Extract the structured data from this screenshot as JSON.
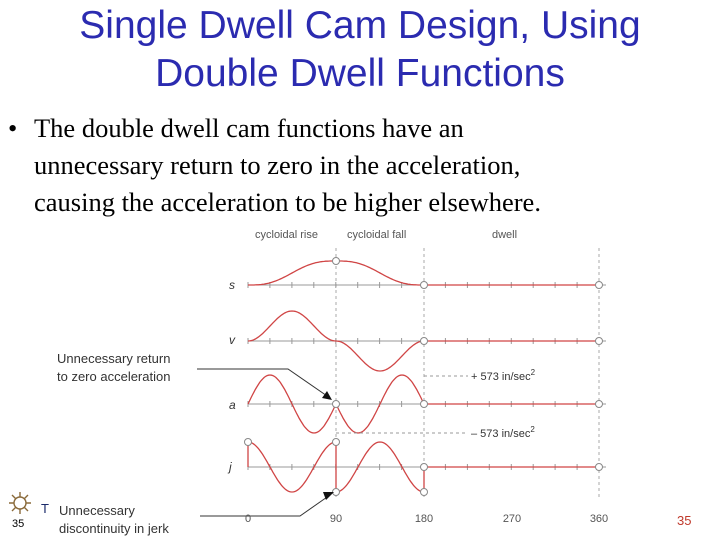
{
  "title": {
    "line1": "Single Dwell Cam Design, Using",
    "line2": "Double Dwell Functions"
  },
  "bullet": {
    "line1": "The double dwell cam functions have an",
    "line2": "unnecessary return to zero in the acceleration,",
    "line3": "causing the acceleration to be higher elsewhere."
  },
  "figure": {
    "header_labels": [
      "cycloidal rise",
      "cycloidal fall",
      "dwell"
    ],
    "row_labels": [
      "s",
      "v",
      "a",
      "j"
    ],
    "x_ticks": [
      "0",
      "90",
      "180",
      "270",
      "360"
    ],
    "annotation_zero_accel_line1": "Unnecessary return",
    "annotation_zero_accel_line2": "to zero acceleration",
    "annotation_jerk_line1": "Unnecessary",
    "annotation_jerk_line2": "discontinuity in jerk",
    "accel_max": "+ 573  in/sec",
    "accel_min": "– 573  in/sec",
    "superscript": "2",
    "curve_color": "#d04545",
    "axis_color": "#999999"
  },
  "logo_letter": "T",
  "slide_number_left": "35",
  "slide_number_right": "35"
}
